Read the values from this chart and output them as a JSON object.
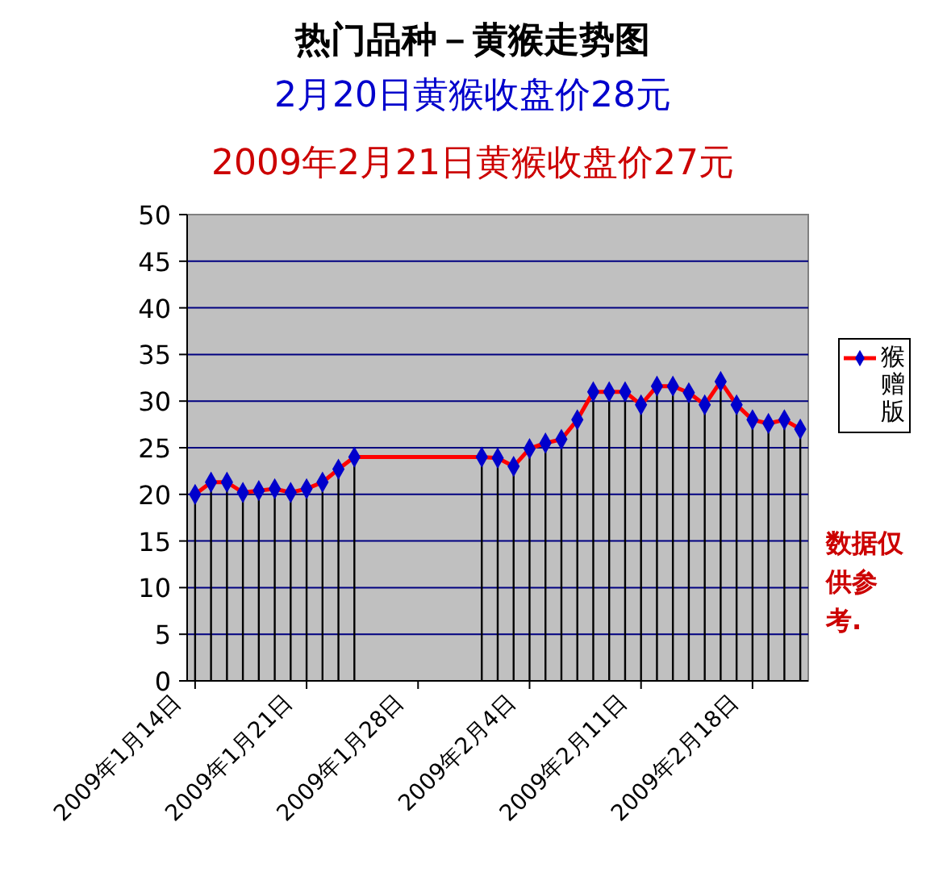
{
  "chart_data": {
    "type": "line",
    "title": "热门品种－黄猴走势图",
    "subtitle": "2月20日黄猴收盘价28元",
    "annotations": [
      "2009年2月21日黄猴收盘价27元",
      "数据仅供参考."
    ],
    "x": [
      "2009-01-14",
      "2009-01-15",
      "2009-01-16",
      "2009-01-17",
      "2009-01-18",
      "2009-01-19",
      "2009-01-20",
      "2009-01-21",
      "2009-01-22",
      "2009-01-23",
      "2009-01-24",
      "2009-02-01",
      "2009-02-02",
      "2009-02-03",
      "2009-02-04",
      "2009-02-05",
      "2009-02-06",
      "2009-02-07",
      "2009-02-08",
      "2009-02-09",
      "2009-02-10",
      "2009-02-11",
      "2009-02-12",
      "2009-02-13",
      "2009-02-14",
      "2009-02-15",
      "2009-02-16",
      "2009-02-17",
      "2009-02-18",
      "2009-02-19",
      "2009-02-20",
      "2009-02-21"
    ],
    "series": [
      {
        "name": "猴赠版",
        "color": "#ff0000",
        "values": [
          20,
          21.3,
          21.3,
          20.2,
          20.4,
          20.6,
          20.2,
          20.6,
          21.3,
          22.7,
          24,
          24,
          23.9,
          23,
          24.9,
          25.5,
          25.9,
          28,
          31,
          31,
          31,
          29.6,
          31.6,
          31.6,
          30.9,
          29.6,
          32.1,
          29.6,
          28,
          27.6,
          28,
          27
        ],
        "errors": [
          [
            0,
            20
          ],
          [
            0,
            21.3
          ],
          [
            0,
            21.3
          ],
          [
            0,
            20.2
          ],
          [
            0,
            20.4
          ],
          [
            0,
            20.6
          ],
          [
            0,
            20.2
          ],
          [
            0,
            20.6
          ],
          [
            0,
            21.3
          ],
          [
            0,
            22.7
          ],
          [
            0,
            24
          ],
          [
            0,
            24
          ],
          [
            0,
            23.9
          ],
          [
            0,
            23
          ],
          [
            0,
            24.9
          ],
          [
            0,
            25.5
          ],
          [
            0,
            25.9
          ],
          [
            0,
            28
          ],
          [
            0,
            31
          ],
          [
            0,
            31
          ],
          [
            0,
            31
          ],
          [
            0,
            29.6
          ],
          [
            0,
            31.6
          ],
          [
            0,
            31.6
          ],
          [
            0,
            30.9
          ],
          [
            0,
            29.6
          ],
          [
            0,
            32.1
          ],
          [
            0,
            29.6
          ],
          [
            0,
            28
          ],
          [
            0,
            27.6
          ],
          [
            0,
            28
          ],
          [
            0,
            27
          ]
        ]
      }
    ],
    "xlim": [
      "2009-01-13T12:00",
      "2009-02-21T12:00"
    ],
    "xticks": [
      {
        "value": "2009-01-14",
        "label": "2009年1月14日"
      },
      {
        "value": "2009-01-21",
        "label": "2009年1月21日"
      },
      {
        "value": "2009-01-28",
        "label": "2009年1月28日"
      },
      {
        "value": "2009-02-04",
        "label": "2009年2月4日"
      },
      {
        "value": "2009-02-11",
        "label": "2009年2月11日"
      },
      {
        "value": "2009-02-18",
        "label": "2009年2月18日"
      }
    ],
    "ylim": [
      0,
      50
    ],
    "yticks": [
      0,
      5,
      10,
      15,
      20,
      25,
      30,
      35,
      40,
      45,
      50
    ],
    "grid": "y",
    "legend": "right",
    "marker": "diamond",
    "line_style": "solid"
  }
}
